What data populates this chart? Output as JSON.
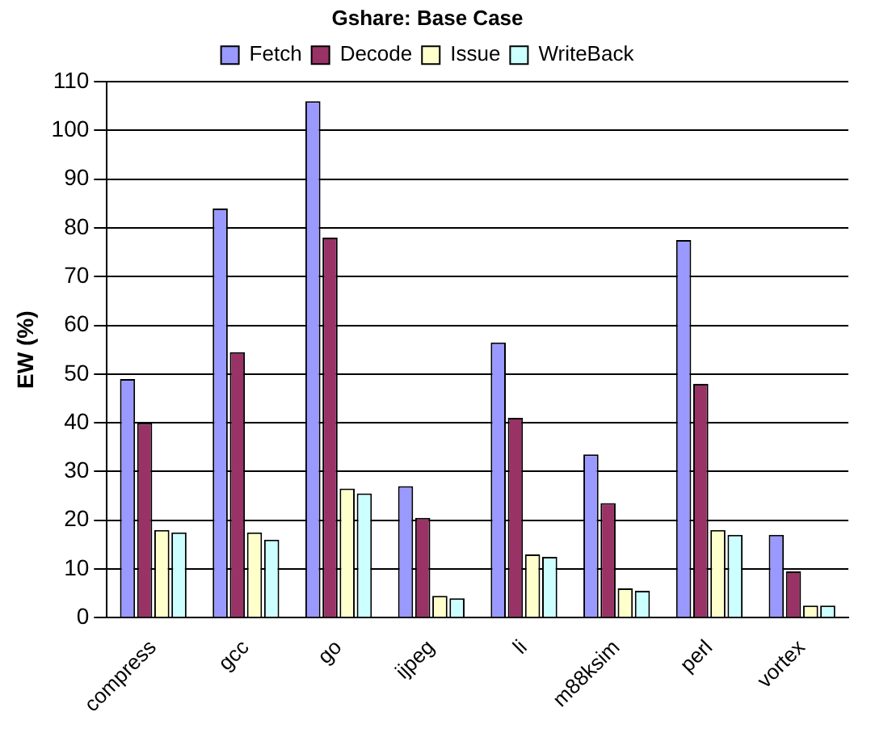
{
  "chart_data": {
    "type": "bar",
    "title": "Gshare: Base Case",
    "ylabel": "EW (%)",
    "categories": [
      "compress",
      "gcc",
      "go",
      "ijpeg",
      "li",
      "m88ksim",
      "perl",
      "vortex"
    ],
    "series": [
      {
        "name": "Fetch",
        "color": "#9999ff",
        "values": [
          49,
          84,
          106,
          27,
          56.5,
          33.5,
          77.5,
          17
        ]
      },
      {
        "name": "Decode",
        "color": "#993366",
        "values": [
          40,
          54.5,
          78,
          20.5,
          41,
          23.5,
          48,
          9.5
        ]
      },
      {
        "name": "Issue",
        "color": "#ffffcc",
        "values": [
          18,
          17.5,
          26.5,
          4.5,
          13,
          6,
          18,
          2.5
        ]
      },
      {
        "name": "WriteBack",
        "color": "#ccffff",
        "values": [
          17.5,
          16,
          25.5,
          4,
          12.5,
          5.5,
          17,
          2.5
        ]
      }
    ],
    "ylim": [
      0,
      110
    ],
    "yticks": [
      0,
      10,
      20,
      30,
      40,
      50,
      60,
      70,
      80,
      90,
      100,
      110
    ],
    "grid": "y",
    "legend": "top"
  }
}
